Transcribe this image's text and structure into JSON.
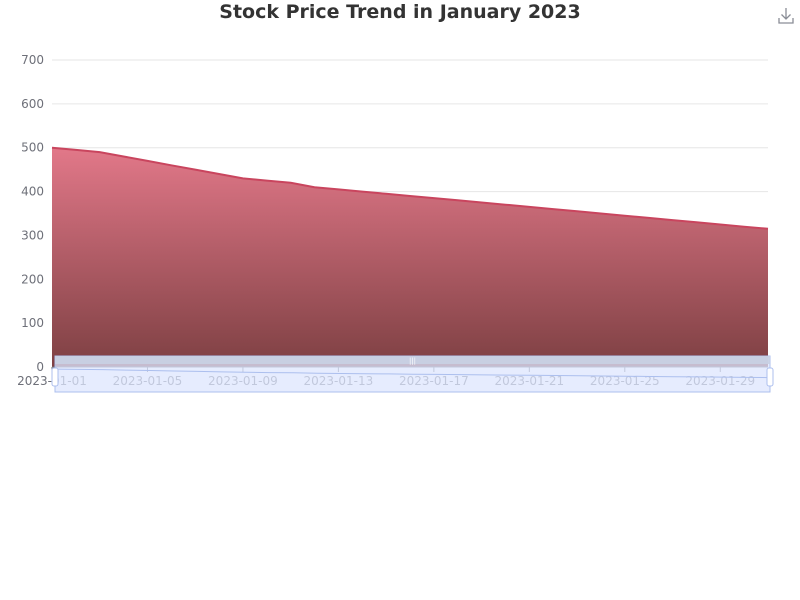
{
  "title": "Stock Price Trend in January 2023",
  "toolbox": {
    "icon": "download-icon"
  },
  "colors": {
    "line": "#c9455e",
    "area_top": "#e27889",
    "area_bottom": "#7e4043",
    "grid": "#e6e6e6",
    "axis_text": "#6e7079",
    "slider_fill": "#dde6fd",
    "slider_border": "#acbfee"
  },
  "chart_data": {
    "type": "area",
    "x": [
      "2023-01-01",
      "2023-01-02",
      "2023-01-03",
      "2023-01-04",
      "2023-01-05",
      "2023-01-06",
      "2023-01-07",
      "2023-01-08",
      "2023-01-09",
      "2023-01-10",
      "2023-01-11",
      "2023-01-12",
      "2023-01-13",
      "2023-01-14",
      "2023-01-15",
      "2023-01-16",
      "2023-01-17",
      "2023-01-18",
      "2023-01-19",
      "2023-01-20",
      "2023-01-21",
      "2023-01-22",
      "2023-01-23",
      "2023-01-24",
      "2023-01-25",
      "2023-01-26",
      "2023-01-27",
      "2023-01-28",
      "2023-01-29",
      "2023-01-30",
      "2023-01-31"
    ],
    "values": [
      500,
      495,
      490,
      480,
      470,
      460,
      450,
      440,
      430,
      425,
      420,
      410,
      405,
      400,
      395,
      390,
      385,
      380,
      375,
      370,
      365,
      360,
      355,
      350,
      345,
      340,
      335,
      330,
      325,
      320,
      315
    ],
    "x_tick_labels": [
      "2023-01-01",
      "2023-01-05",
      "2023-01-09",
      "2023-01-13",
      "2023-01-17",
      "2023-01-21",
      "2023-01-25",
      "2023-01-29"
    ],
    "y_ticks": [
      0,
      100,
      200,
      300,
      400,
      500,
      600,
      700
    ],
    "ylim": [
      0,
      700
    ],
    "grid": true,
    "legend": "none",
    "data_zoom": {
      "start_percent": 0,
      "end_percent": 100,
      "slider": "bottom"
    }
  }
}
